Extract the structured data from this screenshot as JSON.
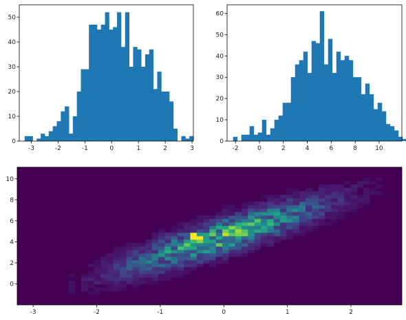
{
  "chart_data": [
    {
      "type": "bar",
      "panel": "top-left",
      "title": "",
      "xlabel": "",
      "ylabel": "",
      "color": "#1f77b4",
      "xlim": [
        -3.45,
        3.05
      ],
      "ylim": [
        0,
        55
      ],
      "bin_start": -3.25,
      "bin_width": 0.15,
      "values": [
        2,
        2,
        0,
        1,
        3,
        2,
        4,
        6,
        8,
        12,
        14,
        3,
        10,
        20,
        29,
        29,
        47,
        47,
        45,
        47,
        52,
        45,
        46,
        52,
        38,
        52,
        30,
        38,
        37,
        30,
        35,
        37,
        21,
        28,
        20,
        20,
        16,
        5,
        0,
        2,
        1,
        2
      ],
      "xticks": [
        -3,
        -2,
        -1,
        0,
        1,
        2,
        3
      ],
      "xtick_labels": [
        "-3",
        "-2",
        "-1",
        "0",
        "1",
        "2",
        "3"
      ],
      "yticks": [
        0,
        10,
        20,
        30,
        40,
        50
      ],
      "ytick_labels": [
        "0",
        "10",
        "20",
        "30",
        "40",
        "50"
      ]
    },
    {
      "type": "bar",
      "panel": "top-right",
      "title": "",
      "xlabel": "",
      "ylabel": "",
      "color": "#1f77b4",
      "xlim": [
        -2.7,
        11.9
      ],
      "ylim": [
        0,
        64
      ],
      "bin_start": -2.2,
      "bin_width": 0.345,
      "values": [
        2,
        0,
        3,
        3,
        7,
        3,
        4,
        10,
        3,
        6,
        10,
        12,
        18,
        18,
        30,
        36,
        38,
        42,
        32,
        47,
        46,
        61,
        36,
        48,
        32,
        42,
        38,
        40,
        38,
        30,
        30,
        22,
        27,
        22,
        15,
        18,
        14,
        8,
        7,
        5,
        2,
        1
      ],
      "xticks": [
        -2,
        0,
        2,
        4,
        6,
        8,
        10
      ],
      "xtick_labels": [
        "-2",
        "0",
        "2",
        "4",
        "6",
        "8",
        "10"
      ],
      "yticks": [
        0,
        10,
        20,
        30,
        40,
        50,
        60
      ],
      "ytick_labels": [
        "0",
        "10",
        "20",
        "30",
        "40",
        "50",
        "60"
      ]
    },
    {
      "type": "heatmap",
      "panel": "bottom",
      "title": "",
      "xlabel": "",
      "ylabel": "",
      "colormap": "viridis",
      "xlim": [
        -3.25,
        2.8
      ],
      "ylim": [
        -2.0,
        11.1
      ],
      "correlation_note_hidden": true,
      "xticks": [
        -3,
        -2,
        -1,
        0,
        1,
        2
      ],
      "xtick_labels": [
        "-3",
        "-2",
        "-1",
        "0",
        "1",
        "2"
      ],
      "yticks": [
        0,
        2,
        4,
        6,
        8,
        10
      ],
      "ytick_labels": [
        "0",
        "2",
        "4",
        "6",
        "8",
        "10"
      ],
      "peak_x": -0.45,
      "peak_y": 4.5,
      "slope": 1.9,
      "intercept": 4.55
    }
  ]
}
